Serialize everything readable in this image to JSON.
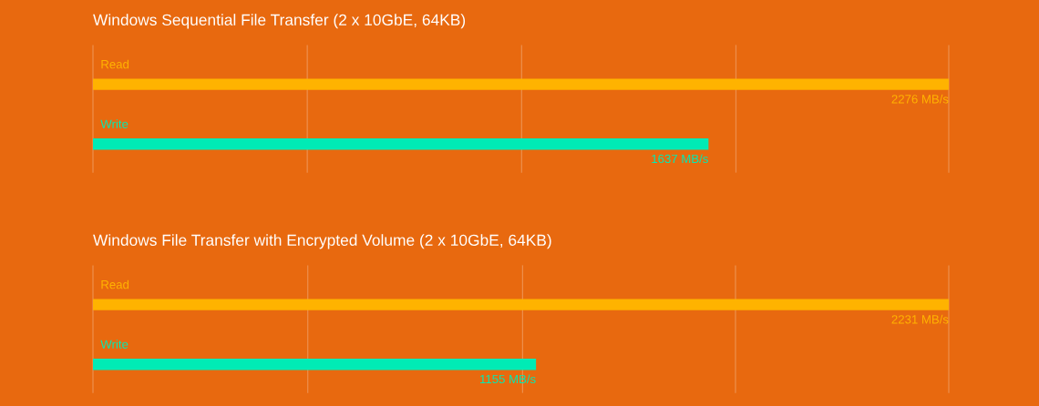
{
  "chart_data": [
    {
      "type": "bar",
      "orientation": "horizontal",
      "title": "Windows Sequential File Transfer (2 x 10GbE, 64KB)",
      "categories": [
        "Read",
        "Write"
      ],
      "values": [
        2276,
        1637
      ],
      "colors": [
        "#ffb300",
        "#00ebb5"
      ],
      "value_labels": [
        "2276 MB/s",
        "1637 MB/s"
      ],
      "xlim": [
        0,
        2276
      ],
      "xticks": [
        {
          "value": 0,
          "label": null
        },
        {
          "value": 570,
          "label": null
        },
        {
          "value": 1140,
          "label": null
        },
        {
          "value": 1710,
          "label": null
        },
        {
          "value": 2276,
          "label": null
        }
      ],
      "grid": "x"
    },
    {
      "type": "bar",
      "orientation": "horizontal",
      "title": "Windows File Transfer with Encrypted Volume (2 x 10GbE, 64KB)",
      "categories": [
        "Read",
        "Write"
      ],
      "values": [
        2231,
        1155
      ],
      "colors": [
        "#ffb300",
        "#00ebb5"
      ],
      "value_labels": [
        "2231 MB/s",
        "1155 MB/s"
      ],
      "xlim": [
        0,
        2231
      ],
      "xticks": [
        {
          "value": 0,
          "label": null
        },
        {
          "value": 560,
          "label": null
        },
        {
          "value": 1120,
          "label": null
        },
        {
          "value": 1675,
          "label": null
        },
        {
          "value": 2231,
          "label": null
        }
      ],
      "grid": "x"
    }
  ]
}
